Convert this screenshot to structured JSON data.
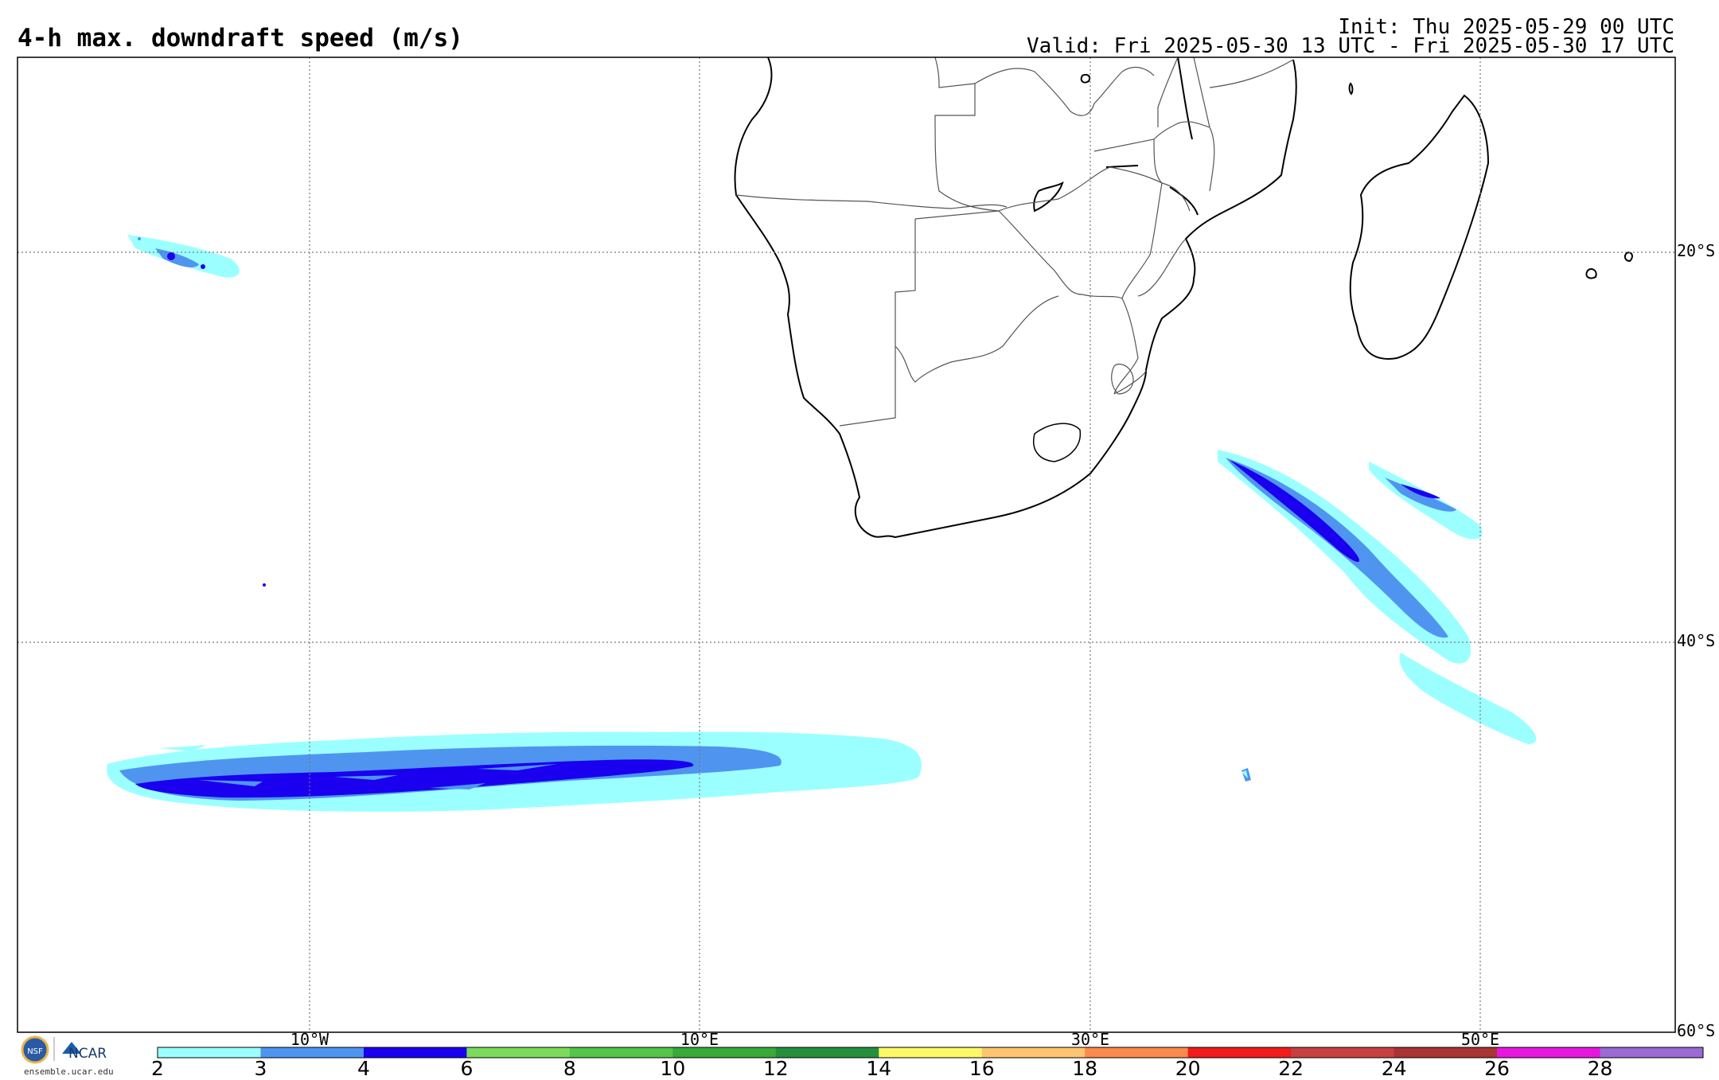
{
  "header": {
    "title": "4-h max. downdraft speed (m/s)",
    "init": "Init: Thu 2025-05-29 00 UTC",
    "valid": "Valid: Fri 2025-05-30 13 UTC - Fri 2025-05-30 17 UTC"
  },
  "map": {
    "projection": "cylindrical",
    "lon_range": [
      -25,
      60
    ],
    "lat_range": [
      -60,
      -10
    ],
    "lon_labels": [
      "10°W",
      "10°E",
      "30°E",
      "50°E"
    ],
    "lat_labels": [
      "20°S",
      "40°S",
      "60°S"
    ],
    "gridlines": "dotted"
  },
  "colorbar": {
    "ticks": [
      "2",
      "3",
      "4",
      "6",
      "8",
      "10",
      "12",
      "14",
      "16",
      "18",
      "20",
      "22",
      "24",
      "26",
      "28"
    ],
    "colors": [
      "#9cffff",
      "#4f95f0",
      "#1a00ef",
      "#7cdb5c",
      "#55c44a",
      "#39a93a",
      "#258f3c",
      "#fdf868",
      "#fdc570",
      "#fb8a4e",
      "#f21b1b",
      "#c84040",
      "#a83434",
      "#e618e0",
      "#9a6bd3"
    ]
  },
  "footer": {
    "logo_text": "NCAR",
    "site": "ensemble.ucar.edu"
  }
}
